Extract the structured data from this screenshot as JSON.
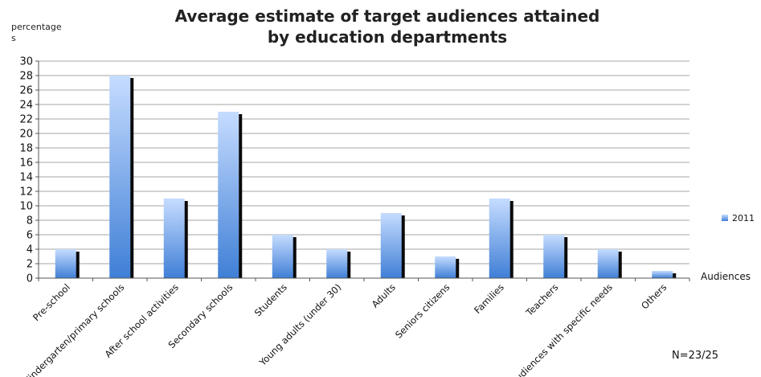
{
  "chart_data": {
    "type": "bar",
    "title_line1": "Average estimate of target audiences attained",
    "title_line2": "by education departments",
    "ylabel_line1": "percentage",
    "ylabel_line2": "s",
    "xlabel": "Audiences",
    "ylim": [
      0,
      30
    ],
    "ytick_step": 2,
    "grid": true,
    "legend_position": "right",
    "categories": [
      "Pre-school",
      "Kindergarten/primary schools",
      "After school activities",
      "Secondary schools",
      "Students",
      "Young adults (under 30)",
      "Adults",
      "Seniors citizens",
      "Families",
      "Teachers",
      "Audiences with specific needs",
      "Others"
    ],
    "series": [
      {
        "name": "2011",
        "values": [
          4,
          28,
          11,
          23,
          6,
          4,
          9,
          3,
          11,
          6,
          4,
          1
        ]
      }
    ],
    "note": "N=23/25",
    "colors": {
      "bar_light": "#c6dcff",
      "bar_dark": "#3f7fd6",
      "shadow": "#0a0a0a",
      "grid": "#a6a6a6"
    }
  }
}
